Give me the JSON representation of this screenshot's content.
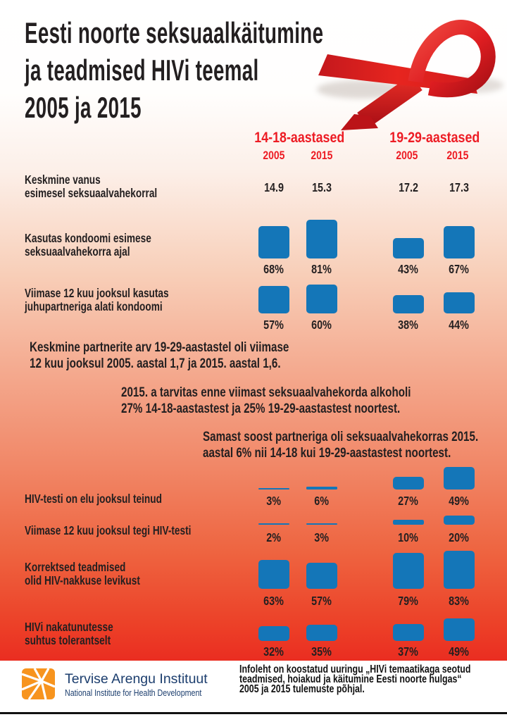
{
  "title_lines": [
    "Eesti noorte seksuaalkäitumine",
    "ja teadmised HIVi teemal",
    "2005 ja 2015"
  ],
  "colors": {
    "bar_blue": "#1476b8",
    "heading_red": "#ed1c24",
    "text_dark": "#231f20",
    "logo_orange": "#f7941e",
    "logo_navy": "#1c3e6e",
    "gradient_top": "#ffffff",
    "gradient_bottom": "#e7131a"
  },
  "images": {
    "ribbon_alt": "red AIDS awareness ribbon",
    "logo_alt": "orange sunburst logo of Tervise Arengu Instituut"
  },
  "groups": [
    {
      "label": "14-18-aastased",
      "years": [
        "2005",
        "2015"
      ]
    },
    {
      "label": "19-29-aastased",
      "years": [
        "2005",
        "2015"
      ]
    }
  ],
  "age_row": {
    "label_lines": [
      "Keskmine vanus",
      "esimesel seksuaalvahekorral"
    ],
    "values": [
      "14.9",
      "15.3",
      "17.2",
      "17.3"
    ]
  },
  "notes": [
    {
      "lines": [
        "Keskmine partnerite arv 19-29-aastastel oli viimase",
        "12 kuu jooksul 2005. aastal 1,7 ja 2015. aastal 1,6."
      ]
    },
    {
      "lines": [
        "2015. a tarvitas enne viimast seksuaalvahekorda alkoholi",
        "27% 14-18-aastastest ja 25% 19-29-aastastest noortest."
      ]
    },
    {
      "lines": [
        "Samast soost partneriga oli seksuaalvahekorras 2015.",
        "aastal 6% nii 14-18 kui 19-29-aastastest noortest."
      ]
    }
  ],
  "chart_data": {
    "type": "bar",
    "title": "Eesti noorte seksuaalkäitumine ja teadmised HIVi teemal 2005 ja 2015",
    "unit": "%",
    "columns": [
      "14-18-aastased 2005",
      "14-18-aastased 2015",
      "19-29-aastased 2005",
      "19-29-aastased 2015"
    ],
    "first_sex_age": {
      "label": "Keskmine vanus esimesel seksuaalvahekorral",
      "values": [
        14.9,
        15.3,
        17.2,
        17.3
      ]
    },
    "rows": [
      {
        "label_lines": [
          "Kasutas kondoomi esimese",
          "seksuaalvahekorra ajal"
        ],
        "values": [
          68,
          81,
          43,
          67
        ]
      },
      {
        "label_lines": [
          "Viimase 12 kuu jooksul kasutas",
          "juhupartneriga alati kondoomi"
        ],
        "values": [
          57,
          60,
          38,
          44
        ]
      },
      {
        "label_lines": [
          "HIV-testi on elu jooksul teinud"
        ],
        "values": [
          3,
          6,
          27,
          49
        ]
      },
      {
        "label_lines": [
          "Viimase 12 kuu jooksul tegi HIV-testi"
        ],
        "values": [
          2,
          3,
          10,
          20
        ]
      },
      {
        "label_lines": [
          "Korrektsed teadmised",
          "olid HIV-nakkuse levikust"
        ],
        "values": [
          63,
          57,
          79,
          83
        ]
      },
      {
        "label_lines": [
          "HIVi nakatunutesse",
          "suhtus tolerantselt"
        ],
        "values": [
          32,
          35,
          37,
          49
        ]
      }
    ]
  },
  "footer": {
    "org_name": "Tervise Arengu Instituut",
    "org_subtitle": "National Institute for Health Development",
    "info_lines": [
      "Infoleht on koostatud uuringu „HIVi temaatikaga seotud",
      "teadmised, hoiakud ja käitumine Eesti noorte hulgas“",
      "2005 ja 2015 tulemuste põhjal."
    ]
  }
}
